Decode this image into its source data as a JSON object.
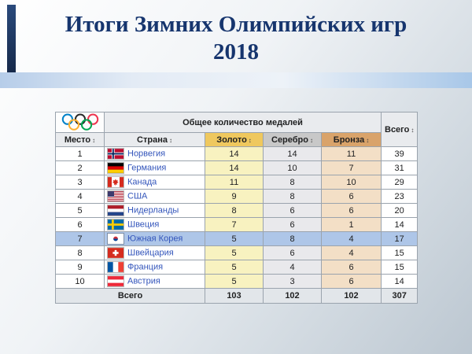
{
  "slide": {
    "title_line1": "Итоги Зимних Олимпийских игр",
    "title_line2": "2018"
  },
  "table": {
    "group_header": "Общее количество медалей",
    "columns": {
      "place": "Место",
      "country": "Страна",
      "gold": "Золото",
      "silver": "Серебро",
      "bronze": "Бронза",
      "total": "Всего"
    },
    "sort_glyph": "↕",
    "rows": [
      {
        "place": "1",
        "flag": "norway",
        "country": "Норвегия",
        "gold": "14",
        "silver": "14",
        "bronze": "11",
        "total": "39",
        "highlighted": false
      },
      {
        "place": "2",
        "flag": "germany",
        "country": "Германия",
        "gold": "14",
        "silver": "10",
        "bronze": "7",
        "total": "31",
        "highlighted": false
      },
      {
        "place": "3",
        "flag": "canada",
        "country": "Канада",
        "gold": "11",
        "silver": "8",
        "bronze": "10",
        "total": "29",
        "highlighted": false
      },
      {
        "place": "4",
        "flag": "usa",
        "country": "США",
        "gold": "9",
        "silver": "8",
        "bronze": "6",
        "total": "23",
        "highlighted": false
      },
      {
        "place": "5",
        "flag": "netherlands",
        "country": "Нидерланды",
        "gold": "8",
        "silver": "6",
        "bronze": "6",
        "total": "20",
        "highlighted": false
      },
      {
        "place": "6",
        "flag": "sweden",
        "country": "Швеция",
        "gold": "7",
        "silver": "6",
        "bronze": "1",
        "total": "14",
        "highlighted": false
      },
      {
        "place": "7",
        "flag": "south-korea",
        "country": "Южная Корея",
        "gold": "5",
        "silver": "8",
        "bronze": "4",
        "total": "17",
        "highlighted": true
      },
      {
        "place": "8",
        "flag": "switzerland",
        "country": "Швейцария",
        "gold": "5",
        "silver": "6",
        "bronze": "4",
        "total": "15",
        "highlighted": false
      },
      {
        "place": "9",
        "flag": "france",
        "country": "Франция",
        "gold": "5",
        "silver": "4",
        "bronze": "6",
        "total": "15",
        "highlighted": false
      },
      {
        "place": "10",
        "flag": "austria",
        "country": "Австрия",
        "gold": "5",
        "silver": "3",
        "bronze": "6",
        "total": "14",
        "highlighted": false
      }
    ],
    "footer": {
      "label": "Всего",
      "gold": "103",
      "silver": "102",
      "bronze": "102",
      "total": "307"
    }
  },
  "colors": {
    "title_color": "#16356e",
    "link_color": "#3355bb",
    "gold_header": "#efc85e",
    "silver_header": "#c8c8c8",
    "bronze_header": "#d9a36a",
    "gold_cell": "#f8f2c0",
    "silver_cell": "#e9e9ec",
    "bronze_cell": "#f3dfc6",
    "highlight_row": "#aec6e8"
  }
}
